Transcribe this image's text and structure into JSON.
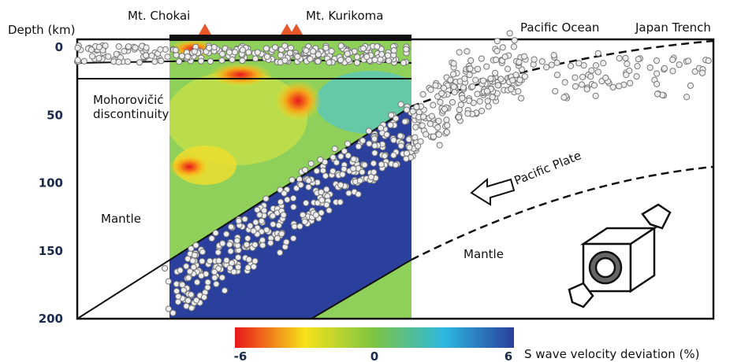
{
  "axis": {
    "label": "Depth (km)",
    "ticks": [
      0,
      50,
      100,
      150,
      200
    ]
  },
  "labels": {
    "mountain_1": "Mt. Chokai",
    "mountain_2": "Mt. Kurikoma",
    "ocean": "Pacific Ocean",
    "trench": "Japan Trench",
    "moho_1": "Mohorovičić",
    "moho_2": "discontinuity",
    "mantle_left": "Mantle",
    "mantle_right": "Mantle",
    "plate": "Pacific Plate"
  },
  "colorbar": {
    "label": "S wave velocity deviation (%)",
    "ticks": [
      -6,
      0,
      6
    ]
  }
}
